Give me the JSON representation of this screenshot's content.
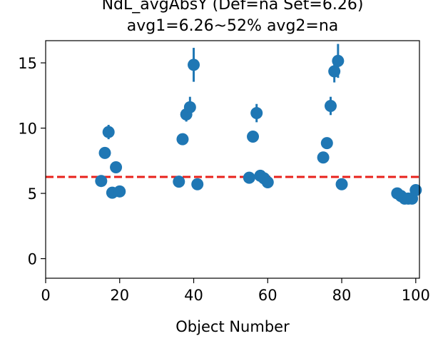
{
  "chart_data": {
    "type": "scatter",
    "title_lines": [
      "NdL_avgAbsY (Def=na Set=6.26)",
      "avg1=6.26~52% avg2=na"
    ],
    "xlabel": "Object Number",
    "ylabel": "",
    "xlim": [
      0,
      101
    ],
    "ylim": [
      -1.5,
      16.7
    ],
    "xticks": [
      0,
      20,
      40,
      60,
      80,
      100
    ],
    "xtick_labels": [
      "0",
      "20",
      "40",
      "60",
      "80",
      "100"
    ],
    "yticks": [
      0,
      5,
      10,
      15
    ],
    "ytick_labels": [
      "0",
      "5",
      "10",
      "15"
    ],
    "grid": false,
    "reference_line": {
      "y": 6.26,
      "style": "dashed",
      "color": "#e8221b"
    },
    "marker_color": "#1f77b4",
    "points": [
      {
        "x": 15,
        "y": 5.95,
        "err": 0.25
      },
      {
        "x": 16,
        "y": 8.1,
        "err": 0.3
      },
      {
        "x": 17,
        "y": 9.7,
        "err": 0.55
      },
      {
        "x": 18,
        "y": 5.05,
        "err": 0.2
      },
      {
        "x": 19,
        "y": 7.0,
        "err": 0.3
      },
      {
        "x": 20,
        "y": 5.15,
        "err": 0.2
      },
      {
        "x": 36,
        "y": 5.9,
        "err": 0.25
      },
      {
        "x": 37,
        "y": 9.15,
        "err": 0.35
      },
      {
        "x": 38,
        "y": 11.05,
        "err": 0.55
      },
      {
        "x": 39,
        "y": 11.6,
        "err": 0.8
      },
      {
        "x": 40,
        "y": 14.85,
        "err": 1.3
      },
      {
        "x": 41,
        "y": 5.7,
        "err": 0.25
      },
      {
        "x": 55,
        "y": 6.2,
        "err": 0.25
      },
      {
        "x": 56,
        "y": 9.35,
        "err": 0.3
      },
      {
        "x": 57,
        "y": 11.15,
        "err": 0.7
      },
      {
        "x": 58,
        "y": 6.35,
        "err": 0.25
      },
      {
        "x": 59,
        "y": 6.15,
        "err": 0.25
      },
      {
        "x": 60,
        "y": 5.85,
        "err": 0.25
      },
      {
        "x": 75,
        "y": 7.75,
        "err": 0.3
      },
      {
        "x": 76,
        "y": 8.85,
        "err": 0.35
      },
      {
        "x": 77,
        "y": 11.7,
        "err": 0.7
      },
      {
        "x": 78,
        "y": 14.35,
        "err": 0.85
      },
      {
        "x": 79,
        "y": 15.15,
        "err": 1.3
      },
      {
        "x": 80,
        "y": 5.7,
        "err": 0.25
      },
      {
        "x": 95,
        "y": 5.0,
        "err": 0.2
      },
      {
        "x": 96,
        "y": 4.8,
        "err": 0.2
      },
      {
        "x": 97,
        "y": 4.6,
        "err": 0.2
      },
      {
        "x": 98,
        "y": 4.6,
        "err": 0.2
      },
      {
        "x": 99,
        "y": 4.6,
        "err": 0.2
      },
      {
        "x": 100,
        "y": 5.25,
        "err": 0.25
      }
    ]
  }
}
